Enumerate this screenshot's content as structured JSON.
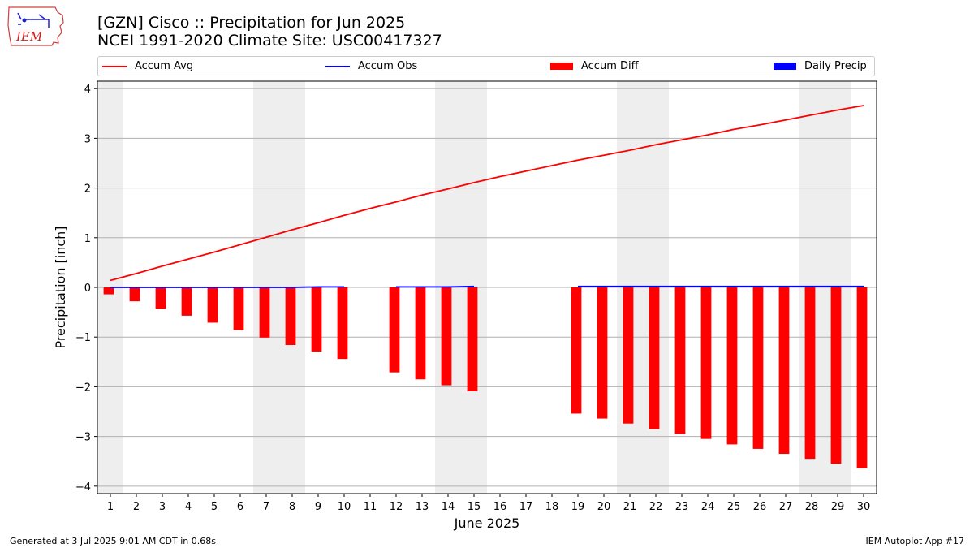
{
  "header": {
    "title_line1": "[GZN] Cisco :: Precipitation for Jun 2025",
    "title_line2": "NCEI 1991-2020 Climate Site: USC00417327"
  },
  "logo": {
    "text": "IEM"
  },
  "legend": [
    {
      "label": "Accum Avg",
      "kind": "line",
      "color": "#ff0000"
    },
    {
      "label": "Accum Obs",
      "kind": "line",
      "color": "#0000ff"
    },
    {
      "label": "Accum Diff",
      "kind": "patch",
      "color": "#ff0000"
    },
    {
      "label": "Daily Precip",
      "kind": "patch",
      "color": "#0000ff"
    }
  ],
  "footer": {
    "left": "Generated at 3 Jul 2025 9:01 AM CDT in 0.68s",
    "right": "IEM Autoplot App #17"
  },
  "chart_data": {
    "type": "bar",
    "xlabel": "June 2025",
    "ylabel": "Precipitation [inch]",
    "ylim": [
      -4.15,
      4.15
    ],
    "yticks": [
      -4,
      -3,
      -2,
      -1,
      0,
      1,
      2,
      3,
      4
    ],
    "grid": "horizontal",
    "days": [
      1,
      2,
      3,
      4,
      5,
      6,
      7,
      8,
      9,
      10,
      11,
      12,
      13,
      14,
      15,
      16,
      17,
      18,
      19,
      20,
      21,
      22,
      23,
      24,
      25,
      26,
      27,
      28,
      29,
      30
    ],
    "weekend_shading": [
      [
        1,
        1
      ],
      [
        7,
        8
      ],
      [
        14,
        15
      ],
      [
        21,
        22
      ],
      [
        28,
        29
      ]
    ],
    "series": [
      {
        "name": "Accum Avg",
        "kind": "line",
        "color": "#ff0000",
        "values": [
          0.14,
          0.28,
          0.43,
          0.57,
          0.71,
          0.86,
          1.01,
          1.16,
          1.3,
          1.45,
          1.59,
          1.72,
          1.86,
          1.98,
          2.11,
          2.23,
          2.34,
          2.45,
          2.56,
          2.66,
          2.76,
          2.87,
          2.97,
          3.07,
          3.18,
          3.27,
          3.37,
          3.47,
          3.57,
          3.66
        ]
      },
      {
        "name": "Accum Obs",
        "kind": "line",
        "color": "#0000ff",
        "values": [
          0.0,
          0.0,
          0.0,
          0.0,
          0.0,
          0.0,
          0.0,
          0.0,
          0.01,
          0.01,
          null,
          0.01,
          0.01,
          0.01,
          0.02,
          null,
          null,
          null,
          0.02,
          0.02,
          0.02,
          0.02,
          0.02,
          0.02,
          0.02,
          0.02,
          0.02,
          0.02,
          0.02,
          0.02
        ]
      },
      {
        "name": "Accum Diff",
        "kind": "bar",
        "color": "#ff0000",
        "values": [
          -0.14,
          -0.28,
          -0.43,
          -0.57,
          -0.71,
          -0.86,
          -1.01,
          -1.16,
          -1.29,
          -1.44,
          null,
          -1.71,
          -1.85,
          -1.97,
          -2.09,
          null,
          null,
          null,
          -2.54,
          -2.64,
          -2.74,
          -2.85,
          -2.95,
          -3.05,
          -3.16,
          -3.25,
          -3.35,
          -3.45,
          -3.55,
          -3.64
        ]
      },
      {
        "name": "Daily Precip",
        "kind": "bar",
        "color": "#0000ff",
        "values": [
          0,
          0,
          0,
          0,
          0,
          0,
          0,
          0,
          0.01,
          0,
          null,
          0,
          0,
          0,
          0.01,
          null,
          null,
          null,
          0,
          0,
          0,
          0,
          0,
          0,
          0,
          0,
          0,
          0,
          0,
          0
        ]
      }
    ]
  }
}
